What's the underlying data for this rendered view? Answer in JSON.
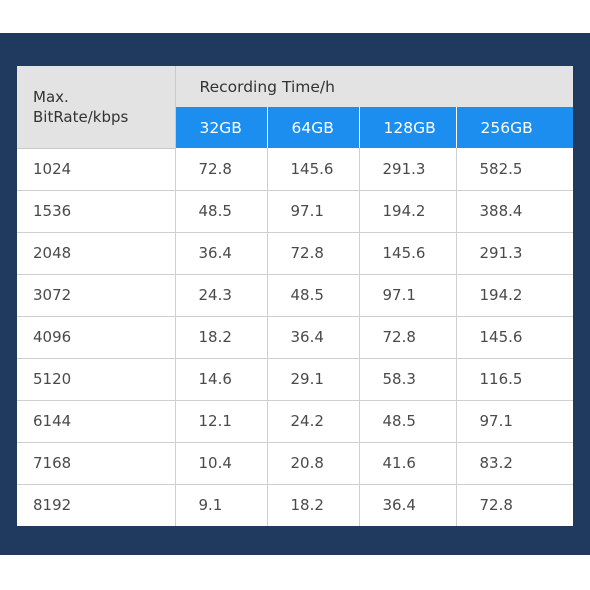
{
  "table": {
    "corner_line1": "Max.",
    "corner_line2": "BitRate/kbps",
    "group_header": "Recording Time/h",
    "capacities": [
      "32GB",
      "64GB",
      "128GB",
      "256GB"
    ],
    "rows": [
      {
        "rate": "1024",
        "values": [
          "72.8",
          "145.6",
          "291.3",
          "582.5"
        ]
      },
      {
        "rate": "1536",
        "values": [
          "48.5",
          "97.1",
          "194.2",
          "388.4"
        ]
      },
      {
        "rate": "2048",
        "values": [
          "36.4",
          "72.8",
          "145.6",
          "291.3"
        ]
      },
      {
        "rate": "3072",
        "values": [
          "24.3",
          "48.5",
          "97.1",
          "194.2"
        ]
      },
      {
        "rate": "4096",
        "values": [
          "18.2",
          "36.4",
          "72.8",
          "145.6"
        ]
      },
      {
        "rate": "5120",
        "values": [
          "14.6",
          "29.1",
          "58.3",
          "116.5"
        ]
      },
      {
        "rate": "6144",
        "values": [
          "12.1",
          "24.2",
          "48.5",
          "97.1"
        ]
      },
      {
        "rate": "7168",
        "values": [
          "10.4",
          "20.8",
          "41.6",
          "83.2"
        ]
      },
      {
        "rate": "8192",
        "values": [
          "9.1",
          "18.2",
          "36.4",
          "72.8"
        ]
      }
    ]
  },
  "colors": {
    "panel_background": "#1f3a5e",
    "header_grey": "#e3e3e3",
    "capacity_header_blue": "#1b8ef0"
  }
}
